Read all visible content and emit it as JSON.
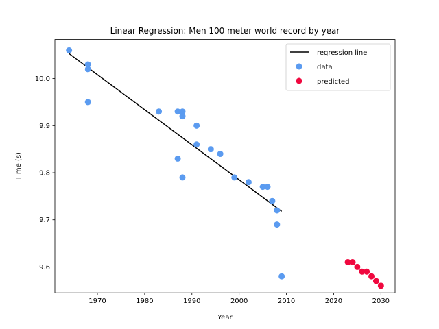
{
  "chart_data": {
    "type": "scatter",
    "title": "Linear Regression: Men 100 meter world record by year",
    "xlabel": "Year",
    "ylabel": "Time (s)",
    "xlim": [
      1961,
      2033
    ],
    "ylim": [
      9.545,
      10.083
    ],
    "xticks": [
      1970,
      1980,
      1990,
      2000,
      2010,
      2020,
      2030
    ],
    "yticks": [
      9.6,
      9.7,
      9.8,
      9.9,
      10.0
    ],
    "grid": false,
    "legend": {
      "position": "top-right",
      "entries": [
        "regression line",
        "data",
        "predicted"
      ]
    },
    "colors": {
      "regression_line": "#000000",
      "data": "#5b9bf0",
      "predicted": "#f0083f"
    },
    "series": [
      {
        "name": "regression line",
        "kind": "line",
        "points": [
          [
            1964,
            10.053
          ],
          [
            2009,
            9.718
          ]
        ]
      },
      {
        "name": "data",
        "kind": "scatter",
        "points": [
          [
            1964,
            10.06
          ],
          [
            1968,
            10.03
          ],
          [
            1968,
            10.02
          ],
          [
            1968,
            9.95
          ],
          [
            1983,
            9.93
          ],
          [
            1987,
            9.93
          ],
          [
            1988,
            9.93
          ],
          [
            1988,
            9.92
          ],
          [
            1991,
            9.9
          ],
          [
            1991,
            9.86
          ],
          [
            1994,
            9.85
          ],
          [
            1996,
            9.84
          ],
          [
            1987,
            9.83
          ],
          [
            1988,
            9.79
          ],
          [
            1999,
            9.79
          ],
          [
            2002,
            9.78
          ],
          [
            2005,
            9.77
          ],
          [
            2006,
            9.77
          ],
          [
            2007,
            9.74
          ],
          [
            2008,
            9.72
          ],
          [
            2008,
            9.69
          ],
          [
            2009,
            9.58
          ]
        ]
      },
      {
        "name": "predicted",
        "kind": "scatter",
        "points": [
          [
            2023,
            9.61
          ],
          [
            2024,
            9.61
          ],
          [
            2025,
            9.6
          ],
          [
            2026,
            9.59
          ],
          [
            2027,
            9.59
          ],
          [
            2028,
            9.58
          ],
          [
            2029,
            9.57
          ],
          [
            2030,
            9.56
          ]
        ]
      }
    ]
  }
}
